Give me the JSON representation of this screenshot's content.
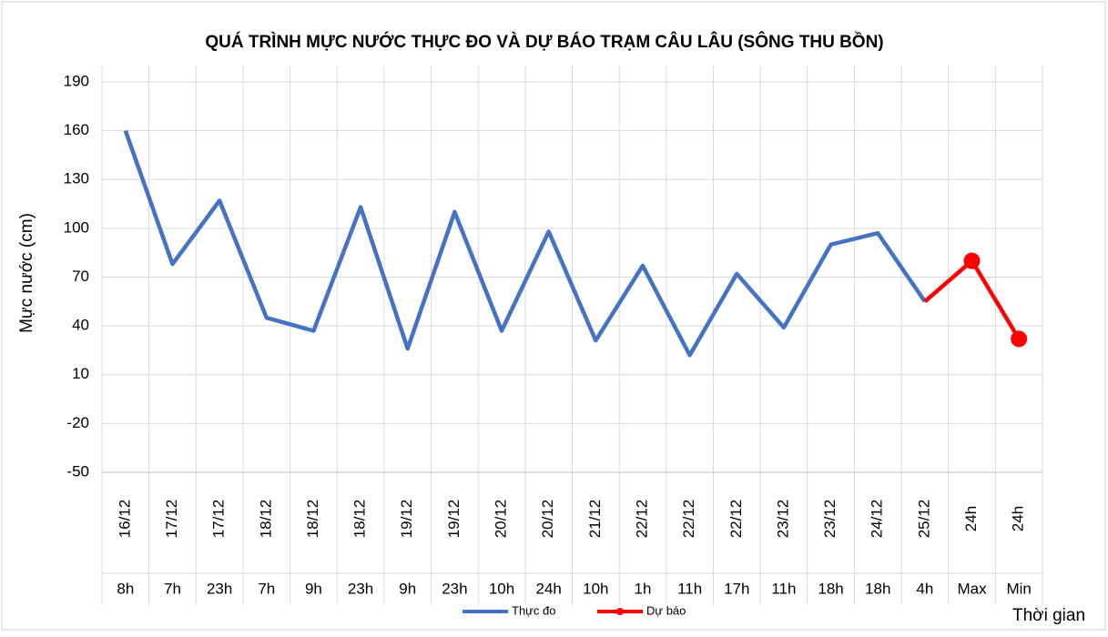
{
  "chart_data": {
    "type": "line",
    "title": "QUÁ TRÌNH MỰC NƯỚC THỰC ĐO VÀ DỰ BÁO TRẠM CÂU LÂU (SÔNG THU BỒN)",
    "y_label": "Mực nước (cm)",
    "x_label": "Thời gian",
    "categories": [
      [
        "16/12",
        "8h"
      ],
      [
        "17/12",
        "7h"
      ],
      [
        "17/12",
        "23h"
      ],
      [
        "18/12",
        "7h"
      ],
      [
        "18/12",
        "9h"
      ],
      [
        "18/12",
        "23h"
      ],
      [
        "19/12",
        "9h"
      ],
      [
        "19/12",
        "23h"
      ],
      [
        "20/12",
        "10h"
      ],
      [
        "20/12",
        "24h"
      ],
      [
        "21/12",
        "10h"
      ],
      [
        "22/12",
        "1h"
      ],
      [
        "22/12",
        "11h"
      ],
      [
        "22/12",
        "17h"
      ],
      [
        "23/12",
        "11h"
      ],
      [
        "23/12",
        "18h"
      ],
      [
        "24/12",
        "18h"
      ],
      [
        "25/12",
        "4h"
      ],
      [
        "24h",
        "Max"
      ],
      [
        "24h",
        "Min"
      ]
    ],
    "series": [
      {
        "name": "Thực đo",
        "color": "#4472c4",
        "values": [
          160,
          78,
          117,
          45,
          37,
          113,
          26,
          110,
          37,
          98,
          31,
          77,
          22,
          72,
          39,
          90,
          97,
          55,
          null,
          null
        ]
      },
      {
        "name": "Dự báo",
        "color": "#ff0000",
        "values": [
          null,
          null,
          null,
          null,
          null,
          null,
          null,
          null,
          null,
          null,
          null,
          null,
          null,
          null,
          null,
          null,
          null,
          55,
          80,
          32
        ]
      }
    ],
    "ylim": [
      -50,
      190
    ],
    "yticks": [
      -50,
      -20,
      10,
      40,
      70,
      100,
      130,
      160,
      190
    ],
    "grid": true
  }
}
